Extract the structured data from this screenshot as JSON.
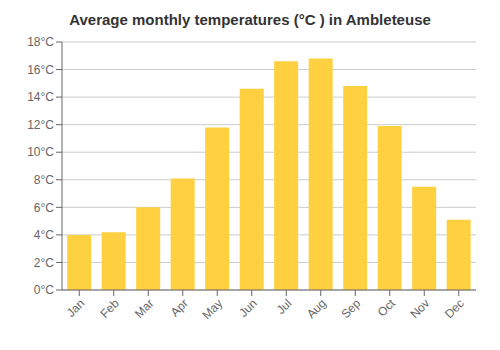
{
  "chart_data": {
    "type": "bar",
    "title": "Average monthly temperatures (°C ) in Ambleteuse",
    "categories": [
      "Jan",
      "Feb",
      "Mar",
      "Apr",
      "May",
      "Jun",
      "Jul",
      "Aug",
      "Sep",
      "Oct",
      "Nov",
      "Dec"
    ],
    "values": [
      4.0,
      4.2,
      6.0,
      8.1,
      11.8,
      14.6,
      16.6,
      16.8,
      14.8,
      11.9,
      7.5,
      5.1
    ],
    "color": "#FFD040",
    "ylim": [
      0,
      18
    ],
    "yticks": [
      {
        "value": 0,
        "label": "0°C"
      },
      {
        "value": 2,
        "label": "2°C"
      },
      {
        "value": 4,
        "label": "4°C"
      },
      {
        "value": 6,
        "label": "6°C"
      },
      {
        "value": 8,
        "label": "8°C"
      },
      {
        "value": 10,
        "label": "10°C"
      },
      {
        "value": 12,
        "label": "12°C"
      },
      {
        "value": 14,
        "label": "14°C"
      },
      {
        "value": 16,
        "label": "16°C"
      },
      {
        "value": 18,
        "label": "18°C"
      }
    ],
    "grid": true
  }
}
